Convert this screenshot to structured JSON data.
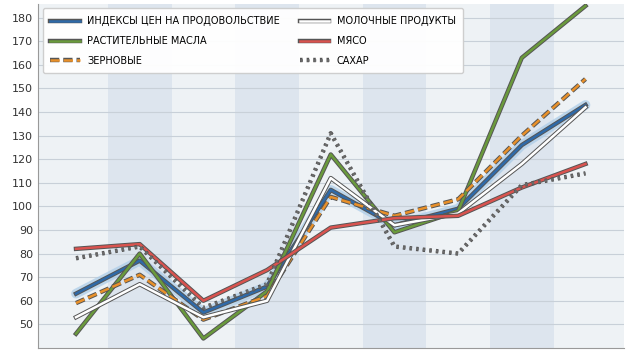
{
  "chart_data": {
    "type": "line",
    "categories": [
      null,
      null,
      null,
      null,
      null,
      null,
      null,
      null,
      null
    ],
    "series": [
      {
        "name": "ИНДЕКСЫ ЦЕН НА ПРОДОВОЛЬСТВИЕ",
        "color": "#2f6aa8",
        "line_style": "solid",
        "values": [
          63,
          77,
          55,
          66,
          107,
          92,
          99,
          126,
          143
        ]
      },
      {
        "name": "РАСТИТЕЛЬНЫЕ МАСЛА",
        "color": "#6a9a3c",
        "line_style": "solid",
        "values": [
          46,
          80,
          44,
          64,
          122,
          89,
          98,
          163,
          185
        ]
      },
      {
        "name": "ЗЕРНОВЫЕ",
        "color": "#e8902a",
        "line_style": "dashed",
        "values": [
          59,
          71,
          52,
          62,
          104,
          96,
          103,
          130,
          154
        ]
      },
      {
        "name": "МОЛОЧНЫЕ ПРОДУКТЫ",
        "color": "#ffffff",
        "line_style": "solid",
        "values": [
          53,
          67,
          53,
          60,
          112,
          92,
          97,
          118,
          142
        ]
      },
      {
        "name": "МЯСО",
        "color": "#d9534f",
        "line_style": "solid",
        "values": [
          82,
          84,
          60,
          73,
          91,
          95,
          96,
          108,
          118
        ]
      },
      {
        "name": "САХАР",
        "color": "#6b6b6b",
        "line_style": "dotted",
        "values": [
          78,
          83,
          57,
          67,
          131,
          83,
          80,
          109,
          114
        ]
      }
    ],
    "ylim": [
      40,
      186
    ],
    "yticks": [
      50,
      60,
      70,
      80,
      90,
      100,
      110,
      120,
      130,
      140,
      150,
      160,
      170,
      180
    ],
    "grid": true,
    "legend": "upper left",
    "tick_labels": "y"
  }
}
